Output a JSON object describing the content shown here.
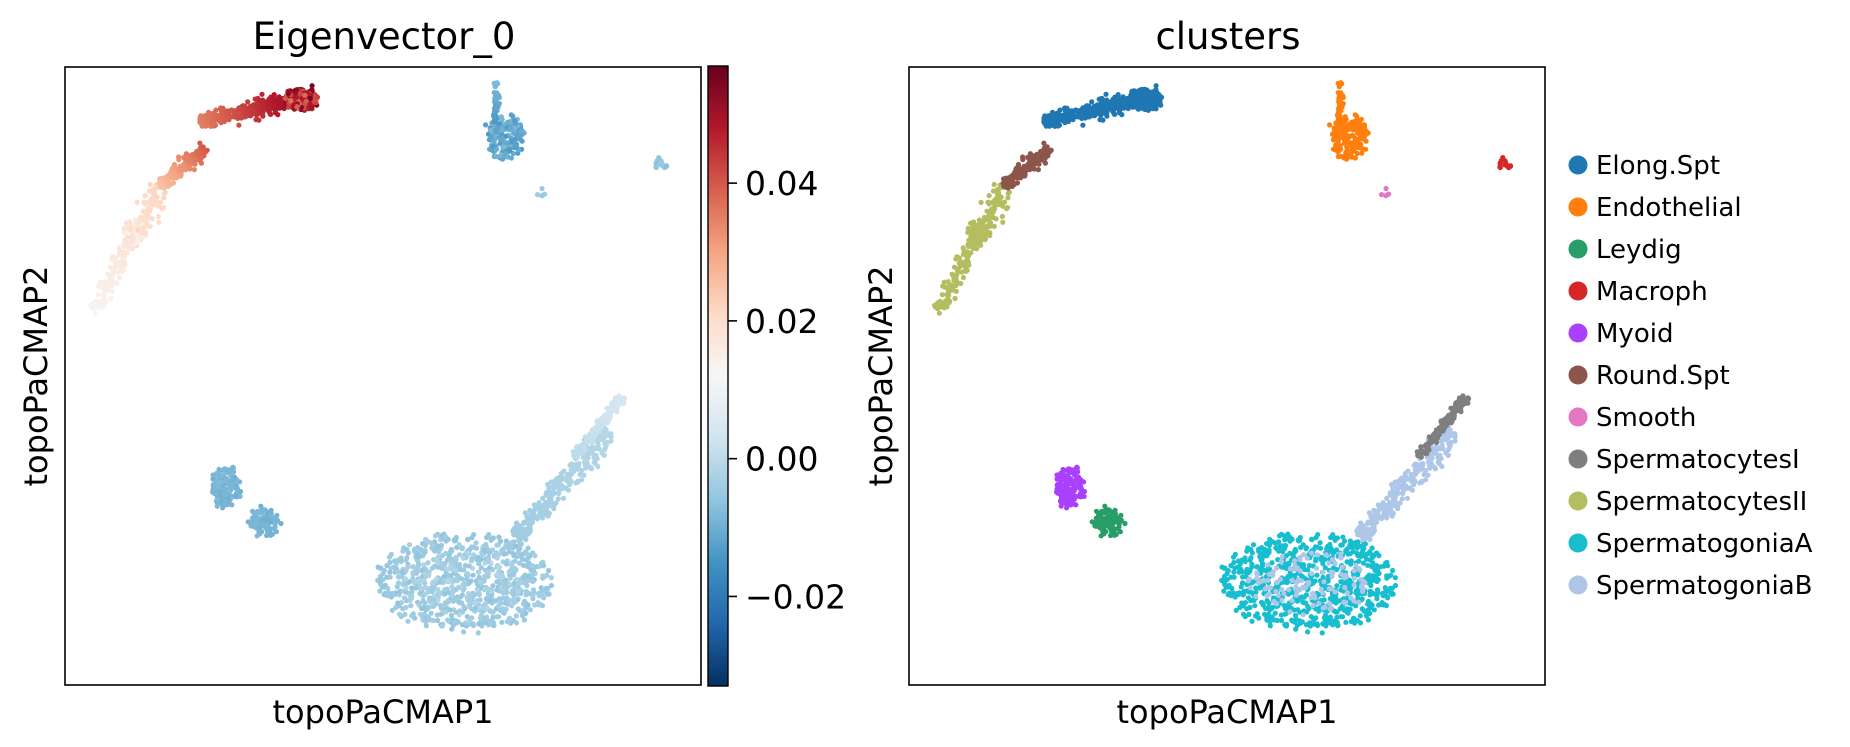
{
  "chart_data": [
    {
      "type": "scatter",
      "title": "Eigenvector_0",
      "xlabel": "topoPaCMAP1",
      "ylabel": "topoPaCMAP2",
      "colorbar": {
        "colormap": "RdBu_r",
        "range": [
          -0.033,
          0.057
        ],
        "ticks": [
          -0.02,
          0.0,
          0.02,
          0.04
        ],
        "tick_labels": [
          "−0.02",
          "0.00",
          "0.02",
          "0.04"
        ]
      },
      "groups": [
        {
          "name": "Elong.Spt",
          "value_range": [
            0.035,
            0.055
          ]
        },
        {
          "name": "Round.Spt",
          "value_range": [
            0.025,
            0.04
          ]
        },
        {
          "name": "SpermatocytesII",
          "value_range": [
            0.013,
            0.022
          ]
        },
        {
          "name": "SpermatocytesI",
          "value_range": [
            0.0,
            0.004
          ]
        },
        {
          "name": "SpermatogoniaB",
          "value_range": [
            -0.004,
            -0.001
          ]
        },
        {
          "name": "SpermatogoniaA",
          "value_range": [
            -0.006,
            -0.003
          ]
        },
        {
          "name": "Myoid",
          "value_range": [
            -0.01,
            -0.008
          ]
        },
        {
          "name": "Leydig",
          "value_range": [
            -0.01,
            -0.008
          ]
        },
        {
          "name": "Endothelial",
          "value_range": [
            -0.014,
            -0.008
          ]
        },
        {
          "name": "Macroph",
          "value_range": [
            -0.007,
            -0.005
          ]
        }
      ],
      "xlim": [
        0,
        1
      ],
      "ylim": [
        0,
        1
      ],
      "grid": false
    },
    {
      "type": "scatter",
      "title": "clusters",
      "xlabel": "topoPaCMAP1",
      "ylabel": "topoPaCMAP2",
      "legend_position": "right",
      "series": [
        {
          "name": "Elong.Spt",
          "color": "#1f77b4"
        },
        {
          "name": "Endothelial",
          "color": "#ff7f0e"
        },
        {
          "name": "Leydig",
          "color": "#279e68"
        },
        {
          "name": "Macroph",
          "color": "#d62728"
        },
        {
          "name": "Myoid",
          "color": "#aa40fc"
        },
        {
          "name": "Round.Spt",
          "color": "#8c564b"
        },
        {
          "name": "Smooth",
          "color": "#e377c2"
        },
        {
          "name": "SpermatocytesI",
          "color": "#7f7f7f"
        },
        {
          "name": "SpermatocytesII",
          "color": "#b5bd61"
        },
        {
          "name": "SpermatogoniaA",
          "color": "#17becf"
        },
        {
          "name": "SpermatogoniaB",
          "color": "#aec7e8"
        }
      ],
      "xlim": [
        0,
        1
      ],
      "ylim": [
        0,
        1
      ],
      "grid": false
    }
  ]
}
